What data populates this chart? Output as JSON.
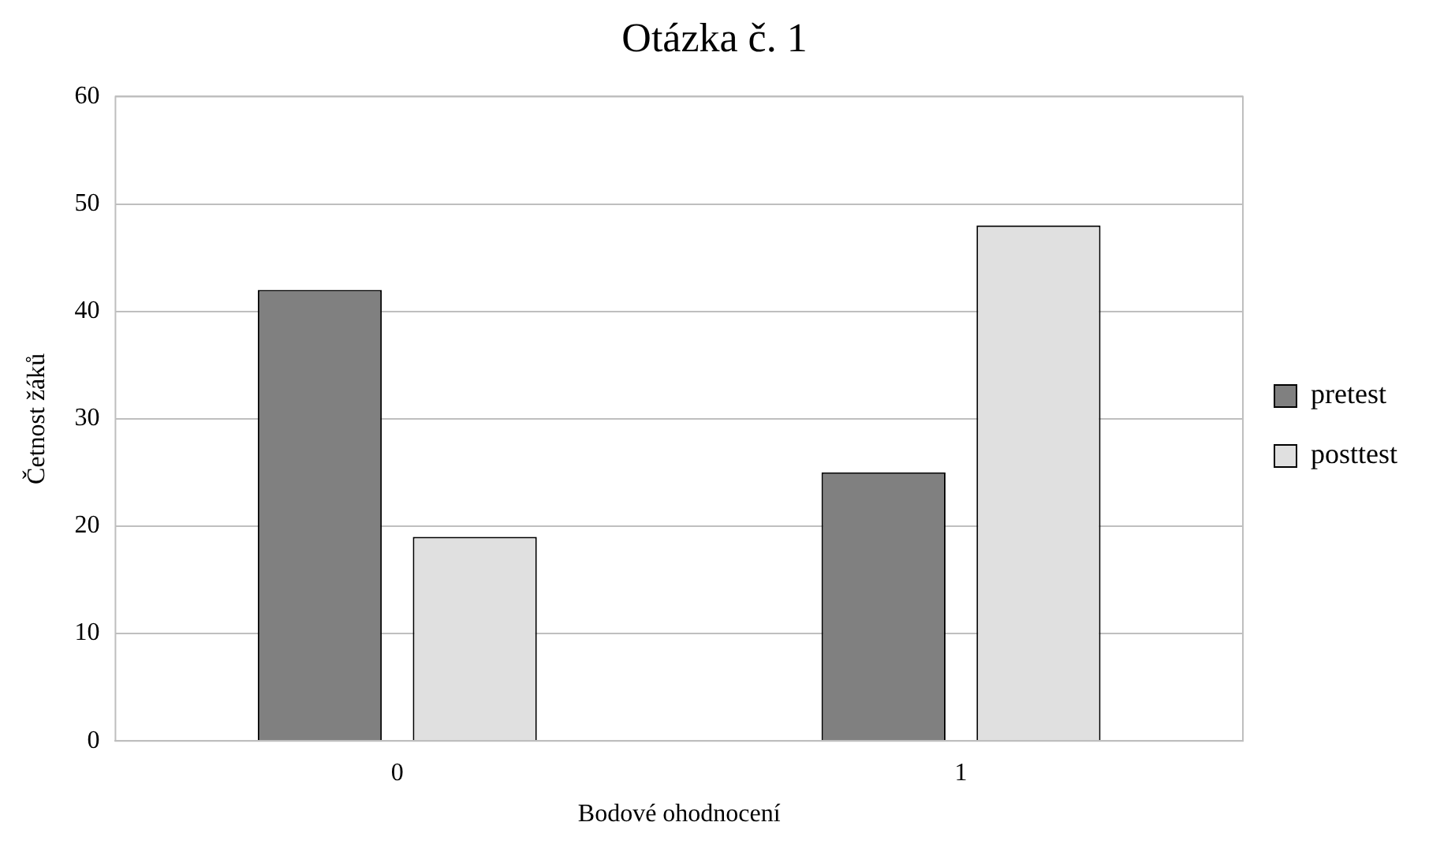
{
  "chart_data": {
    "type": "bar",
    "title": "Otázka č. 1",
    "xlabel": "Bodové ohodnocení",
    "ylabel": "Četnost žáků",
    "categories": [
      "0",
      "1"
    ],
    "series": [
      {
        "name": "pretest",
        "color": "#808080",
        "values": [
          42,
          25
        ]
      },
      {
        "name": "posttest",
        "color": "#e0e0e0",
        "values": [
          19,
          48
        ]
      }
    ],
    "ylim": [
      0,
      60
    ],
    "yticks": [
      0,
      10,
      20,
      30,
      40,
      50,
      60
    ],
    "grid": "y",
    "legend": "right"
  }
}
